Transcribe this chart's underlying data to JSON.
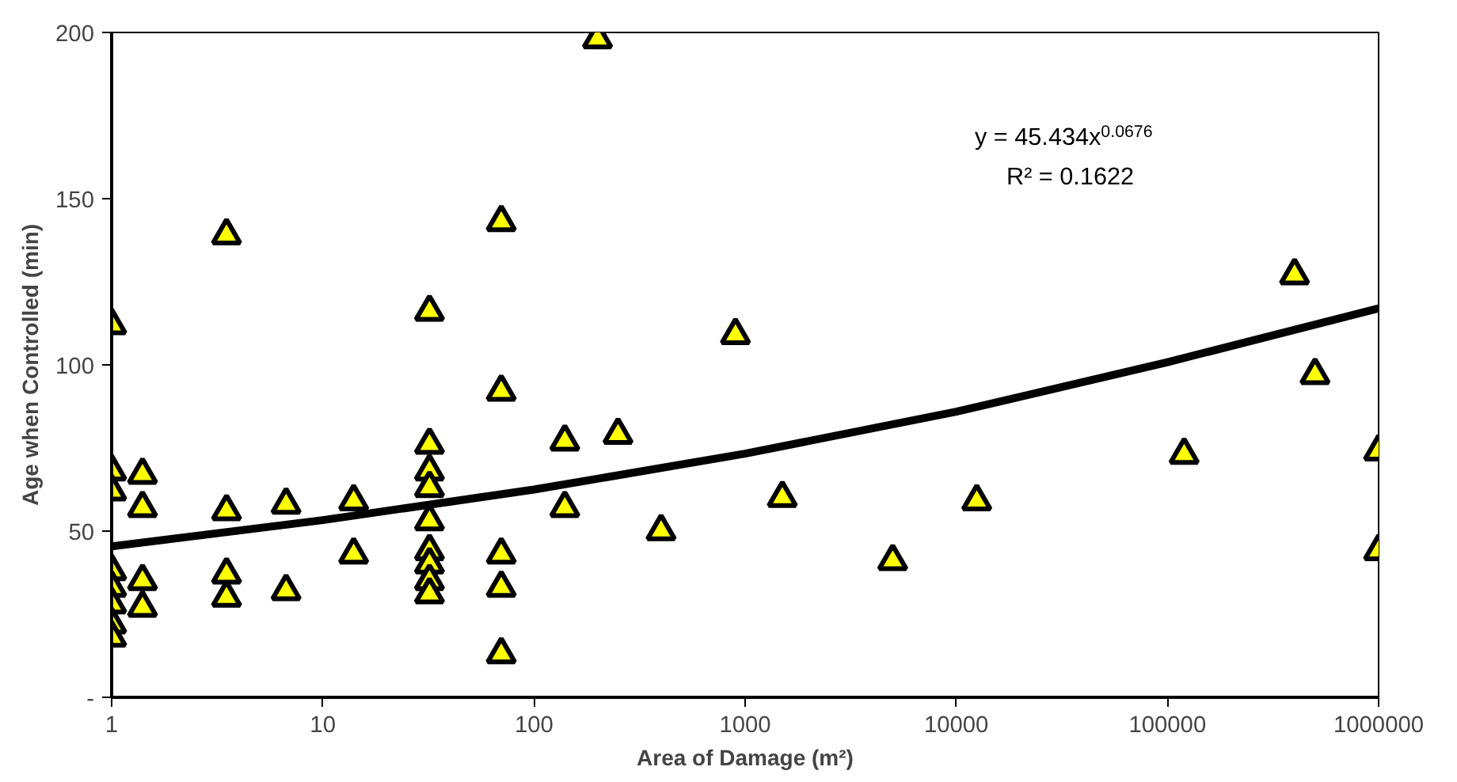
{
  "chart_data": {
    "type": "scatter",
    "xlabel": "Area of Damage (m²)",
    "ylabel": "Age when Controlled (min)",
    "log": "x",
    "grid": false,
    "xlim": [
      1,
      1000000
    ],
    "xticks": [
      1,
      10,
      100,
      1000,
      10000,
      100000,
      1000000
    ],
    "ylim": [
      0,
      200
    ],
    "yticks": [
      {
        "value": 0,
        "label": "-"
      },
      50,
      100,
      150,
      200
    ],
    "annotations": [
      "y = 45.434x$^{0.0676}$",
      "R² = 0.1622"
    ],
    "series": [
      {
        "marker": "triangle",
        "color": "#ffff00",
        "x": [
          1,
          1,
          1,
          1,
          1,
          1,
          1,
          1,
          1.4,
          1.4,
          1.4,
          1.4,
          3.5,
          3.5,
          3.5,
          3.5,
          6.7,
          6.7,
          14,
          14,
          32,
          32,
          32,
          32,
          32,
          32,
          32,
          32,
          32,
          70,
          70,
          70,
          70,
          70,
          140,
          140,
          200,
          250,
          400,
          900,
          1500,
          5000,
          12500,
          120000,
          400000,
          500000,
          1000000,
          1000000
        ],
        "values": [
          112,
          68,
          62,
          38,
          33,
          28,
          22,
          18,
          67,
          57,
          35,
          27,
          139,
          56,
          37,
          30,
          58,
          32,
          59,
          43,
          116,
          76,
          68,
          63,
          53,
          44,
          40,
          35,
          31,
          143,
          92,
          43,
          33,
          13,
          77,
          57,
          198,
          79,
          50,
          109,
          60,
          41,
          59,
          73,
          127,
          97,
          74,
          44
        ]
      },
      {
        "type": "line",
        "color": "#000000",
        "line_style": "solid",
        "x": [
          1,
          10,
          100,
          1000,
          10000,
          100000,
          1000000
        ],
        "values": [
          45.4,
          53.3,
          62.5,
          73.3,
          85.9,
          100.8,
          117
        ]
      }
    ]
  }
}
